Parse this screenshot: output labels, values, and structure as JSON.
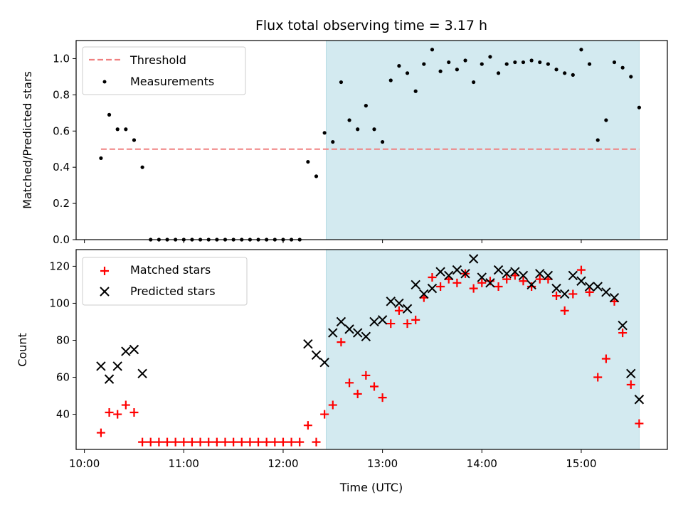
{
  "figure": {
    "title": "Flux total observing time = 3.17 h",
    "xlabel": "Time (UTC)",
    "x_tick_labels": [
      "10:00",
      "11:00",
      "12:00",
      "13:00",
      "14:00",
      "15:00"
    ],
    "highlight_color": "#d3eaf0"
  },
  "chart_data": [
    {
      "type": "scatter",
      "ylabel": "Matched/Predicted stars",
      "ylim": [
        0,
        1.1
      ],
      "y_ticks": [
        0.0,
        0.2,
        0.4,
        0.6,
        0.8,
        1.0
      ],
      "y_tick_labels": [
        "0.0",
        "0.2",
        "0.4",
        "0.6",
        "0.8",
        "1.0"
      ],
      "xlim": [
        "09:55",
        "15:52"
      ],
      "highlight_span": [
        "12:26",
        "15:35"
      ],
      "legend": {
        "position": "top-left",
        "entries": [
          "Threshold",
          "Measurements"
        ]
      },
      "threshold": {
        "name": "Threshold",
        "value": 0.5,
        "x_range": [
          "10:10",
          "15:35"
        ],
        "color": "#f08080"
      },
      "series": [
        {
          "name": "Measurements",
          "color": "#000000",
          "marker": "dot",
          "x": [
            "10:10",
            "10:15",
            "10:20",
            "10:25",
            "10:30",
            "10:35",
            "10:40",
            "10:45",
            "10:50",
            "10:55",
            "11:00",
            "11:05",
            "11:10",
            "11:15",
            "11:20",
            "11:25",
            "11:30",
            "11:35",
            "11:40",
            "11:45",
            "11:50",
            "11:55",
            "12:00",
            "12:05",
            "12:10",
            "12:15",
            "12:20",
            "12:25",
            "12:30",
            "12:35",
            "12:40",
            "12:45",
            "12:50",
            "12:55",
            "13:00",
            "13:05",
            "13:10",
            "13:15",
            "13:20",
            "13:25",
            "13:30",
            "13:35",
            "13:40",
            "13:45",
            "13:50",
            "13:55",
            "14:00",
            "14:05",
            "14:10",
            "14:15",
            "14:20",
            "14:25",
            "14:30",
            "14:35",
            "14:40",
            "14:45",
            "14:50",
            "14:55",
            "15:00",
            "15:05",
            "15:10",
            "15:15",
            "15:20",
            "15:25",
            "15:30",
            "15:35"
          ],
          "y": [
            0.45,
            0.69,
            0.61,
            0.61,
            0.55,
            0.4,
            0,
            0,
            0,
            0,
            0,
            0,
            0,
            0,
            0,
            0,
            0,
            0,
            0,
            0,
            0,
            0,
            0,
            0,
            0,
            0.43,
            0.35,
            0.59,
            0.54,
            0.87,
            0.66,
            0.61,
            0.74,
            0.61,
            0.54,
            0.88,
            0.96,
            0.92,
            0.82,
            0.97,
            1.05,
            0.93,
            0.98,
            0.94,
            0.99,
            0.87,
            0.97,
            1.01,
            0.92,
            0.97,
            0.98,
            0.98,
            0.99,
            0.98,
            0.97,
            0.94,
            0.92,
            0.91,
            1.05,
            0.97,
            0.55,
            0.66,
            0.98,
            0.95,
            0.9,
            0.73
          ]
        }
      ]
    },
    {
      "type": "scatter",
      "ylabel": "Count",
      "ylim": [
        21,
        129
      ],
      "y_ticks": [
        40,
        60,
        80,
        100,
        120
      ],
      "y_tick_labels": [
        "40",
        "60",
        "80",
        "100",
        "120"
      ],
      "xlim": [
        "09:55",
        "15:52"
      ],
      "highlight_span": [
        "12:26",
        "15:35"
      ],
      "legend": {
        "position": "top-left",
        "entries": [
          "Matched stars",
          "Predicted stars"
        ]
      },
      "series": [
        {
          "name": "Matched stars",
          "color": "#ff0000",
          "marker": "plus",
          "x": [
            "10:10",
            "10:15",
            "10:20",
            "10:25",
            "10:30",
            "10:35",
            "10:40",
            "10:45",
            "10:50",
            "10:55",
            "11:00",
            "11:05",
            "11:10",
            "11:15",
            "11:20",
            "11:25",
            "11:30",
            "11:35",
            "11:40",
            "11:45",
            "11:50",
            "11:55",
            "12:00",
            "12:05",
            "12:10",
            "12:15",
            "12:20",
            "12:25",
            "12:30",
            "12:35",
            "12:40",
            "12:45",
            "12:50",
            "12:55",
            "13:00",
            "13:05",
            "13:10",
            "13:15",
            "13:20",
            "13:25",
            "13:30",
            "13:35",
            "13:40",
            "13:45",
            "13:50",
            "13:55",
            "14:00",
            "14:05",
            "14:10",
            "14:15",
            "14:20",
            "14:25",
            "14:30",
            "14:35",
            "14:40",
            "14:45",
            "14:50",
            "14:55",
            "15:00",
            "15:05",
            "15:10",
            "15:15",
            "15:20",
            "15:25",
            "15:30",
            "15:35"
          ],
          "y": [
            30,
            41,
            40,
            45,
            41,
            25,
            25,
            25,
            25,
            25,
            25,
            25,
            25,
            25,
            25,
            25,
            25,
            25,
            25,
            25,
            25,
            25,
            25,
            25,
            25,
            34,
            25,
            40,
            45,
            79,
            57,
            51,
            61,
            55,
            49,
            89,
            96,
            89,
            91,
            103,
            114,
            109,
            113,
            111,
            116,
            108,
            111,
            112,
            109,
            113,
            115,
            112,
            109,
            113,
            113,
            104,
            96,
            105,
            118,
            106,
            60,
            70,
            101,
            84,
            56,
            35
          ]
        },
        {
          "name": "Predicted stars",
          "color": "#000000",
          "marker": "cross",
          "x": [
            "10:10",
            "10:15",
            "10:20",
            "10:25",
            "10:30",
            "10:35",
            "12:15",
            "12:20",
            "12:25",
            "12:30",
            "12:35",
            "12:40",
            "12:45",
            "12:50",
            "12:55",
            "13:00",
            "13:05",
            "13:10",
            "13:15",
            "13:20",
            "13:25",
            "13:30",
            "13:35",
            "13:40",
            "13:45",
            "13:50",
            "13:55",
            "14:00",
            "14:05",
            "14:10",
            "14:15",
            "14:20",
            "14:25",
            "14:30",
            "14:35",
            "14:40",
            "14:45",
            "14:50",
            "14:55",
            "15:00",
            "15:05",
            "15:10",
            "15:15",
            "15:20",
            "15:25",
            "15:30",
            "15:35"
          ],
          "y": [
            66,
            59,
            66,
            74,
            75,
            62,
            78,
            72,
            68,
            84,
            90,
            86,
            84,
            82,
            90,
            91,
            101,
            100,
            97,
            110,
            105,
            108,
            117,
            115,
            118,
            116,
            124,
            114,
            111,
            118,
            116,
            117,
            115,
            110,
            116,
            115,
            108,
            105,
            115,
            112,
            109,
            109,
            106,
            103,
            88,
            62,
            48
          ]
        }
      ]
    }
  ]
}
